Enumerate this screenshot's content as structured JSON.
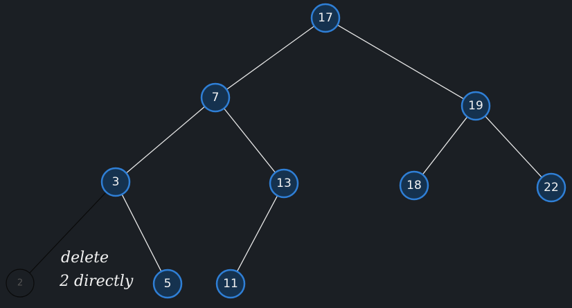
{
  "tree": {
    "nodes": [
      {
        "id": "n17",
        "label": "17"
      },
      {
        "id": "n7",
        "label": "7"
      },
      {
        "id": "n19",
        "label": "19"
      },
      {
        "id": "n3",
        "label": "3"
      },
      {
        "id": "n13",
        "label": "13"
      },
      {
        "id": "n18",
        "label": "18"
      },
      {
        "id": "n22",
        "label": "22"
      },
      {
        "id": "n2",
        "label": "2",
        "deleted": true
      },
      {
        "id": "n5",
        "label": "5"
      },
      {
        "id": "n11",
        "label": "11"
      }
    ],
    "edges": [
      {
        "from": "n17",
        "to": "n7"
      },
      {
        "from": "n17",
        "to": "n19"
      },
      {
        "from": "n7",
        "to": "n3"
      },
      {
        "from": "n7",
        "to": "n13"
      },
      {
        "from": "n19",
        "to": "n18"
      },
      {
        "from": "n19",
        "to": "n22"
      },
      {
        "from": "n3",
        "to": "n2",
        "deleted": true
      },
      {
        "from": "n3",
        "to": "n5"
      },
      {
        "from": "n13",
        "to": "n11"
      }
    ]
  },
  "annotation": {
    "line1": "delete",
    "line2": "2 directly"
  }
}
